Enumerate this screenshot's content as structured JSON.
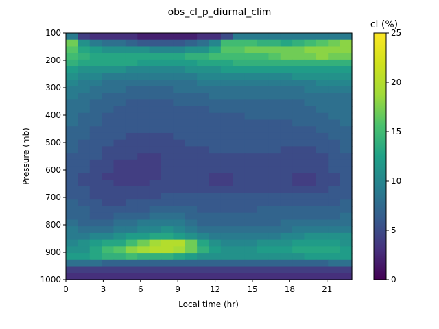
{
  "chart_data": {
    "type": "heatmap",
    "title": "obs_cl_p_diurnal_clim",
    "xlabel": "Local time (hr)",
    "ylabel": "Pressure (mb)",
    "colorbar_label": "cl (%)",
    "colormap": "viridis",
    "xlim": [
      0,
      23
    ],
    "ylim": [
      1000,
      100
    ],
    "clim": [
      0,
      25
    ],
    "x_ticks": [
      "0",
      "3",
      "6",
      "9",
      "12",
      "15",
      "18",
      "21"
    ],
    "y_ticks": [
      "100",
      "200",
      "300",
      "400",
      "500",
      "600",
      "700",
      "800",
      "900",
      "1000"
    ],
    "colorbar_ticks": [
      "0",
      "5",
      "10",
      "15",
      "20",
      "25"
    ],
    "x": [
      0,
      1,
      2,
      3,
      4,
      5,
      6,
      7,
      8,
      9,
      10,
      11,
      12,
      13,
      14,
      15,
      16,
      17,
      18,
      19,
      20,
      21,
      22,
      23
    ],
    "y": [
      100,
      125,
      150,
      175,
      200,
      225,
      250,
      275,
      300,
      325,
      350,
      375,
      400,
      425,
      450,
      475,
      500,
      525,
      550,
      575,
      600,
      625,
      650,
      675,
      700,
      725,
      750,
      775,
      800,
      825,
      850,
      875,
      900,
      925,
      950,
      975,
      1000
    ],
    "z_rows": [
      [
        9,
        4,
        3,
        3,
        3,
        3,
        2,
        2,
        2,
        2,
        2,
        3,
        3,
        5,
        9,
        9,
        9,
        9,
        9,
        9,
        9,
        9,
        9,
        9
      ],
      [
        17,
        11,
        9,
        8,
        8,
        7,
        6,
        6,
        6,
        6,
        7,
        8,
        10,
        15,
        15,
        15,
        14,
        14,
        13,
        14,
        15,
        16,
        17,
        18
      ],
      [
        16,
        13,
        12,
        11,
        11,
        11,
        11,
        10,
        10,
        10,
        11,
        11,
        13,
        16,
        16,
        17,
        17,
        17,
        17,
        17,
        18,
        18,
        18,
        18
      ],
      [
        15,
        14,
        13,
        13,
        13,
        13,
        13,
        13,
        13,
        13,
        14,
        14,
        15,
        15,
        15,
        15,
        15,
        16,
        17,
        17,
        17,
        18,
        17,
        17
      ],
      [
        14,
        13,
        13,
        13,
        13,
        13,
        12,
        12,
        12,
        12,
        12,
        13,
        13,
        13,
        14,
        14,
        14,
        14,
        14,
        14,
        14,
        14,
        14,
        14
      ],
      [
        12,
        11,
        11,
        11,
        11,
        10,
        10,
        10,
        10,
        10,
        11,
        11,
        11,
        12,
        12,
        12,
        12,
        12,
        12,
        12,
        12,
        12,
        12,
        12
      ],
      [
        11,
        10,
        10,
        9,
        9,
        9,
        9,
        9,
        9,
        9,
        9,
        10,
        10,
        10,
        10,
        10,
        10,
        10,
        10,
        11,
        11,
        11,
        11,
        11
      ],
      [
        10,
        9,
        9,
        8,
        8,
        8,
        8,
        8,
        8,
        8,
        8,
        9,
        9,
        9,
        9,
        9,
        9,
        9,
        9,
        9,
        9,
        10,
        10,
        10
      ],
      [
        9,
        9,
        8,
        8,
        8,
        7,
        7,
        7,
        7,
        8,
        8,
        8,
        8,
        8,
        8,
        8,
        8,
        8,
        8,
        8,
        9,
        9,
        9,
        9
      ],
      [
        9,
        8,
        8,
        7,
        7,
        7,
        7,
        7,
        7,
        7,
        7,
        7,
        8,
        8,
        8,
        8,
        8,
        8,
        8,
        8,
        8,
        8,
        8,
        8
      ],
      [
        8,
        8,
        7,
        7,
        7,
        6,
        6,
        6,
        6,
        7,
        7,
        7,
        7,
        7,
        7,
        7,
        7,
        7,
        7,
        7,
        8,
        8,
        8,
        8
      ],
      [
        8,
        8,
        7,
        7,
        6,
        6,
        6,
        6,
        6,
        6,
        6,
        6,
        7,
        7,
        7,
        7,
        7,
        7,
        7,
        7,
        7,
        8,
        8,
        8
      ],
      [
        8,
        7,
        7,
        6,
        6,
        6,
        6,
        6,
        6,
        6,
        6,
        6,
        6,
        6,
        6,
        7,
        7,
        7,
        7,
        7,
        7,
        7,
        8,
        8
      ],
      [
        8,
        7,
        7,
        6,
        6,
        6,
        6,
        6,
        6,
        6,
        6,
        6,
        6,
        6,
        6,
        6,
        6,
        6,
        6,
        7,
        7,
        7,
        7,
        8
      ],
      [
        7,
        7,
        6,
        6,
        6,
        6,
        6,
        6,
        6,
        6,
        6,
        6,
        6,
        6,
        6,
        6,
        6,
        6,
        6,
        6,
        6,
        7,
        7,
        7
      ],
      [
        7,
        7,
        6,
        6,
        6,
        5,
        5,
        5,
        5,
        6,
        6,
        6,
        6,
        6,
        6,
        6,
        6,
        6,
        6,
        6,
        6,
        6,
        7,
        7
      ],
      [
        7,
        6,
        6,
        6,
        5,
        5,
        5,
        5,
        5,
        5,
        6,
        6,
        6,
        6,
        6,
        6,
        6,
        6,
        6,
        6,
        6,
        6,
        6,
        7
      ],
      [
        7,
        6,
        6,
        5,
        5,
        5,
        5,
        5,
        5,
        5,
        5,
        5,
        6,
        6,
        6,
        6,
        6,
        6,
        5,
        5,
        5,
        6,
        6,
        7
      ],
      [
        6,
        6,
        6,
        5,
        5,
        5,
        4,
        4,
        5,
        5,
        5,
        5,
        5,
        5,
        5,
        5,
        5,
        5,
        5,
        5,
        5,
        5,
        6,
        6
      ],
      [
        6,
        6,
        5,
        5,
        4,
        4,
        4,
        4,
        5,
        5,
        5,
        5,
        5,
        5,
        5,
        5,
        5,
        5,
        5,
        5,
        5,
        5,
        6,
        6
      ],
      [
        6,
        6,
        5,
        5,
        4,
        4,
        4,
        4,
        5,
        5,
        5,
        5,
        5,
        5,
        5,
        5,
        5,
        5,
        5,
        5,
        5,
        5,
        6,
        6
      ],
      [
        6,
        5,
        5,
        4,
        4,
        4,
        4,
        4,
        5,
        5,
        5,
        5,
        4,
        4,
        5,
        5,
        5,
        5,
        5,
        4,
        4,
        5,
        5,
        6
      ],
      [
        6,
        5,
        5,
        5,
        4,
        4,
        4,
        5,
        5,
        5,
        5,
        5,
        4,
        4,
        5,
        5,
        5,
        5,
        5,
        4,
        4,
        5,
        5,
        6
      ],
      [
        6,
        6,
        5,
        5,
        5,
        5,
        5,
        5,
        5,
        5,
        5,
        5,
        5,
        5,
        5,
        5,
        5,
        5,
        5,
        5,
        5,
        5,
        6,
        6
      ],
      [
        6,
        6,
        5,
        5,
        5,
        5,
        5,
        5,
        6,
        6,
        6,
        6,
        6,
        6,
        6,
        6,
        6,
        6,
        6,
        6,
        6,
        6,
        6,
        6
      ],
      [
        7,
        6,
        6,
        5,
        5,
        6,
        6,
        6,
        6,
        6,
        6,
        6,
        6,
        6,
        6,
        6,
        6,
        6,
        6,
        6,
        6,
        6,
        6,
        7
      ],
      [
        7,
        7,
        6,
        6,
        6,
        6,
        6,
        7,
        7,
        7,
        7,
        6,
        6,
        6,
        6,
        6,
        7,
        7,
        7,
        7,
        7,
        7,
        7,
        7
      ],
      [
        7,
        7,
        6,
        6,
        7,
        7,
        7,
        8,
        8,
        8,
        7,
        7,
        7,
        7,
        7,
        7,
        7,
        7,
        7,
        7,
        7,
        7,
        7,
        8
      ],
      [
        8,
        7,
        7,
        7,
        8,
        8,
        9,
        9,
        9,
        9,
        8,
        7,
        7,
        7,
        7,
        7,
        7,
        7,
        8,
        8,
        8,
        8,
        8,
        8
      ],
      [
        9,
        8,
        8,
        8,
        9,
        9,
        10,
        10,
        11,
        10,
        9,
        8,
        8,
        8,
        8,
        8,
        8,
        8,
        8,
        9,
        9,
        9,
        9,
        9
      ],
      [
        9,
        9,
        10,
        10,
        11,
        12,
        12,
        13,
        13,
        12,
        11,
        10,
        9,
        9,
        9,
        9,
        9,
        9,
        10,
        10,
        11,
        11,
        11,
        11
      ],
      [
        10,
        11,
        12,
        13,
        13,
        15,
        17,
        19,
        20,
        20,
        17,
        13,
        11,
        10,
        10,
        10,
        11,
        11,
        11,
        12,
        12,
        12,
        12,
        11
      ],
      [
        11,
        11,
        13,
        15,
        16,
        18,
        19,
        20,
        20,
        19,
        17,
        14,
        12,
        11,
        11,
        11,
        12,
        12,
        12,
        13,
        13,
        13,
        13,
        12
      ],
      [
        12,
        12,
        13,
        14,
        14,
        15,
        14,
        14,
        14,
        13,
        12,
        11,
        11,
        11,
        11,
        11,
        11,
        11,
        11,
        11,
        12,
        12,
        12,
        12
      ],
      [
        8,
        8,
        8,
        7,
        7,
        7,
        7,
        7,
        7,
        7,
        7,
        7,
        7,
        7,
        7,
        7,
        7,
        7,
        7,
        7,
        7,
        7,
        8,
        8
      ],
      [
        4,
        4,
        4,
        4,
        4,
        4,
        4,
        4,
        4,
        4,
        4,
        4,
        4,
        4,
        4,
        4,
        4,
        4,
        4,
        4,
        4,
        4,
        4,
        4
      ],
      [
        3,
        3,
        3,
        3,
        3,
        3,
        3,
        3,
        3,
        3,
        3,
        3,
        3,
        3,
        3,
        3,
        3,
        3,
        3,
        3,
        3,
        3,
        3,
        3
      ]
    ]
  }
}
